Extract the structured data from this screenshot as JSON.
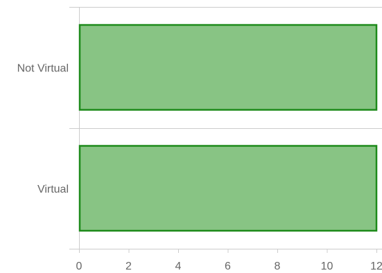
{
  "chart_data": {
    "type": "bar",
    "orientation": "horizontal",
    "categories": [
      "Not Virtual",
      "Virtual"
    ],
    "values": [
      12,
      12
    ],
    "xlim": [
      0,
      12
    ],
    "xticks": [
      0,
      2,
      4,
      6,
      8,
      10,
      12
    ],
    "tick_labels": [
      "0",
      "2",
      "4",
      "6",
      "8",
      "10",
      "12"
    ],
    "grid": false,
    "legend": "none",
    "colors": {
      "bar_fill": "#88c484",
      "bar_stroke": "#1d8a1a",
      "axis": "#cccccc",
      "label": "#666666"
    }
  }
}
